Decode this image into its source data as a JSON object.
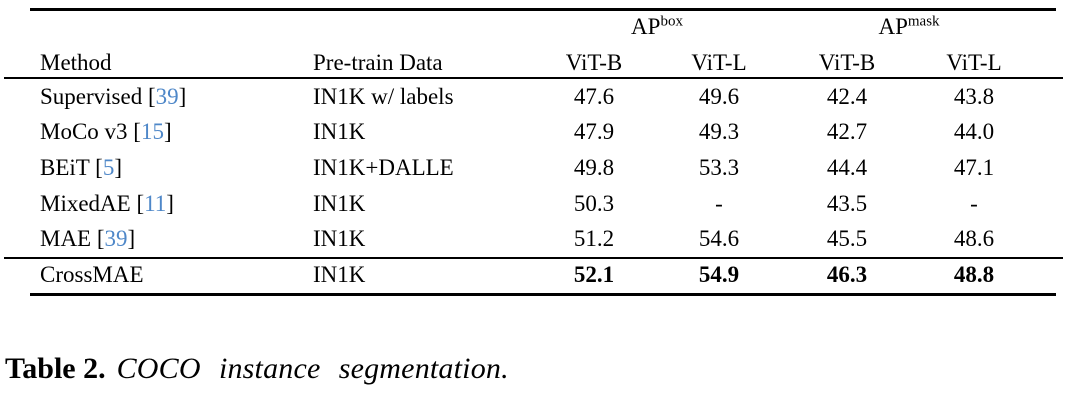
{
  "colors": {
    "citation_blue": "#4e87c8",
    "text": "#000000",
    "background": "#ffffff",
    "rule": "#000000"
  },
  "table": {
    "group_headers": [
      {
        "label": "AP",
        "sup": "box"
      },
      {
        "label": "AP",
        "sup": "mask"
      }
    ],
    "column_headers": [
      "Method",
      "Pre-train Data",
      "ViT-B",
      "ViT-L",
      "ViT-B",
      "ViT-L"
    ],
    "rows": [
      {
        "method": "Supervised",
        "cite": "39",
        "pretrain": "IN1K w/ labels",
        "values": [
          "47.6",
          "49.6",
          "42.4",
          "43.8"
        ],
        "bold": false
      },
      {
        "method": "MoCo v3",
        "cite": "15",
        "pretrain": "IN1K",
        "values": [
          "47.9",
          "49.3",
          "42.7",
          "44.0"
        ],
        "bold": false
      },
      {
        "method": "BEiT",
        "cite": "5",
        "pretrain": "IN1K+DALLE",
        "values": [
          "49.8",
          "53.3",
          "44.4",
          "47.1"
        ],
        "bold": false
      },
      {
        "method": "MixedAE",
        "cite": "11",
        "pretrain": "IN1K",
        "values": [
          "50.3",
          "-",
          "43.5",
          "-"
        ],
        "bold": false
      },
      {
        "method": "MAE",
        "cite": "39",
        "pretrain": "IN1K",
        "values": [
          "51.2",
          "54.6",
          "45.5",
          "48.6"
        ],
        "bold": false
      },
      {
        "method": "CrossMAE",
        "cite": null,
        "pretrain": "IN1K",
        "values": [
          "52.1",
          "54.9",
          "46.3",
          "48.8"
        ],
        "bold": true
      }
    ]
  },
  "caption": {
    "label": "Table 2.",
    "text": "COCO instance segmentation."
  }
}
